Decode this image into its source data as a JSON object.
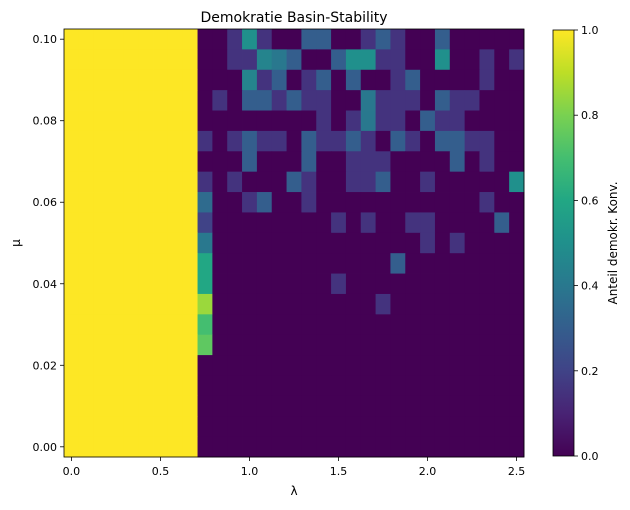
{
  "chart_data": {
    "type": "heatmap",
    "title": "Demokratie Basin-Stability",
    "xlabel": "λ",
    "ylabel": "μ",
    "colorbar_label": "Anteil demokr. Konv.",
    "colormap": "viridis",
    "clim": [
      0,
      1
    ],
    "xlim": [
      -0.0417,
      2.5417
    ],
    "ylim": [
      -0.0025,
      0.1025
    ],
    "x_step": 0.08333,
    "y_step": 0.005,
    "x_ticks": [
      "0.0",
      "0.5",
      "1.0",
      "1.5",
      "2.0",
      "2.5"
    ],
    "x_tick_values": [
      0,
      0.5,
      1.0,
      1.5,
      2.0,
      2.5
    ],
    "y_ticks": [
      "0.00",
      "0.02",
      "0.04",
      "0.06",
      "0.08",
      "0.10"
    ],
    "y_tick_values": [
      0,
      0.02,
      0.04,
      0.06,
      0.08,
      0.1
    ],
    "colorbar_ticks": [
      "0.0",
      "0.2",
      "0.4",
      "0.6",
      "0.8",
      "1.0"
    ],
    "colorbar_tick_values": [
      0,
      0.2,
      0.4,
      0.6,
      0.8,
      1.0
    ],
    "rows_order": "mu descending from 0.100 to 0.000; columns lambda ascending from 0.0 to 2.5",
    "z": [
      [
        1,
        1,
        1,
        1,
        1,
        1,
        1,
        1,
        1,
        0,
        0,
        0.15,
        0.5,
        0.15,
        0,
        0,
        0.3,
        0.3,
        0,
        0,
        0.15,
        0.3,
        0.15,
        0,
        0,
        0.3,
        0,
        0,
        0,
        0,
        0
      ],
      [
        1,
        1,
        1,
        1,
        1,
        1,
        1,
        1,
        1,
        0,
        0,
        0.15,
        0.15,
        0.45,
        0.4,
        0.3,
        0,
        0,
        0.3,
        0.5,
        0.5,
        0.15,
        0.15,
        0,
        0,
        0.5,
        0,
        0,
        0.15,
        0,
        0.15
      ],
      [
        1,
        1,
        1,
        1,
        1,
        1,
        1,
        1,
        1,
        0,
        0,
        0,
        0.45,
        0.15,
        0.3,
        0,
        0.15,
        0.3,
        0,
        0.3,
        0,
        0,
        0.15,
        0.3,
        0,
        0,
        0,
        0,
        0.15,
        0,
        0
      ],
      [
        1,
        1,
        1,
        1,
        1,
        1,
        1,
        1,
        1,
        0,
        0.15,
        0,
        0.3,
        0.3,
        0.15,
        0.3,
        0.15,
        0.15,
        0,
        0,
        0.4,
        0.15,
        0.15,
        0.15,
        0,
        0.3,
        0.15,
        0.15,
        0,
        0,
        0
      ],
      [
        1,
        1,
        1,
        1,
        1,
        1,
        1,
        1,
        1,
        0,
        0,
        0,
        0,
        0,
        0,
        0,
        0,
        0.15,
        0,
        0.15,
        0.4,
        0.15,
        0.15,
        0,
        0.3,
        0.15,
        0.15,
        0,
        0,
        0,
        0
      ],
      [
        1,
        1,
        1,
        1,
        1,
        1,
        1,
        1,
        1,
        0.15,
        0,
        0.15,
        0.3,
        0.15,
        0.15,
        0,
        0.3,
        0.15,
        0.15,
        0.3,
        0.15,
        0,
        0.3,
        0.15,
        0,
        0.3,
        0.3,
        0.15,
        0.15,
        0,
        0
      ],
      [
        1,
        1,
        1,
        1,
        1,
        1,
        1,
        1,
        1,
        0,
        0,
        0,
        0.3,
        0,
        0,
        0,
        0.3,
        0,
        0,
        0.15,
        0.15,
        0.15,
        0,
        0,
        0,
        0,
        0.3,
        0,
        0.15,
        0,
        0
      ],
      [
        1,
        1,
        1,
        1,
        1,
        1,
        1,
        1,
        1,
        0.15,
        0,
        0.15,
        0,
        0,
        0,
        0.3,
        0.15,
        0,
        0,
        0.15,
        0.15,
        0.3,
        0,
        0,
        0.15,
        0,
        0,
        0,
        0,
        0,
        0.5
      ],
      [
        1,
        1,
        1,
        1,
        1,
        1,
        1,
        1,
        1,
        0.35,
        0,
        0,
        0.15,
        0.3,
        0,
        0,
        0.15,
        0,
        0,
        0,
        0,
        0,
        0,
        0,
        0,
        0,
        0,
        0,
        0.15,
        0,
        0
      ],
      [
        1,
        1,
        1,
        1,
        1,
        1,
        1,
        1,
        1,
        0.2,
        0,
        0,
        0,
        0,
        0,
        0,
        0,
        0,
        0.15,
        0,
        0.15,
        0,
        0,
        0.15,
        0.15,
        0,
        0,
        0,
        0,
        0.3,
        0
      ],
      [
        1,
        1,
        1,
        1,
        1,
        1,
        1,
        1,
        1,
        0.4,
        0,
        0,
        0,
        0,
        0,
        0,
        0,
        0,
        0,
        0,
        0,
        0,
        0,
        0,
        0.15,
        0,
        0.15,
        0,
        0,
        0,
        0
      ],
      [
        1,
        1,
        1,
        1,
        1,
        1,
        1,
        1,
        1,
        0.6,
        0,
        0,
        0,
        0,
        0,
        0,
        0,
        0,
        0,
        0,
        0,
        0,
        0.3,
        0,
        0,
        0,
        0,
        0,
        0,
        0,
        0
      ],
      [
        1,
        1,
        1,
        1,
        1,
        1,
        1,
        1,
        1,
        0.6,
        0,
        0,
        0,
        0,
        0,
        0,
        0,
        0,
        0.15,
        0,
        0,
        0,
        0,
        0,
        0,
        0,
        0,
        0,
        0,
        0,
        0
      ],
      [
        1,
        1,
        1,
        1,
        1,
        1,
        1,
        1,
        1,
        0.85,
        0,
        0,
        0,
        0,
        0,
        0,
        0,
        0,
        0,
        0,
        0,
        0.15,
        0,
        0,
        0,
        0,
        0,
        0,
        0,
        0,
        0
      ],
      [
        1,
        1,
        1,
        1,
        1,
        1,
        1,
        1,
        1,
        0.7,
        0,
        0,
        0,
        0,
        0,
        0,
        0,
        0,
        0,
        0,
        0,
        0,
        0,
        0,
        0,
        0,
        0,
        0,
        0,
        0,
        0
      ],
      [
        1,
        1,
        1,
        1,
        1,
        1,
        1,
        1,
        1,
        0.75,
        0,
        0,
        0,
        0,
        0,
        0,
        0,
        0,
        0,
        0,
        0,
        0,
        0,
        0,
        0,
        0,
        0,
        0,
        0,
        0,
        0
      ],
      [
        1,
        1,
        1,
        1,
        1,
        1,
        1,
        1,
        1,
        0,
        0,
        0,
        0,
        0,
        0,
        0,
        0,
        0,
        0,
        0,
        0,
        0,
        0,
        0,
        0,
        0,
        0,
        0,
        0,
        0,
        0
      ],
      [
        1,
        1,
        1,
        1,
        1,
        1,
        1,
        1,
        1,
        0,
        0,
        0,
        0,
        0,
        0,
        0,
        0,
        0,
        0,
        0,
        0,
        0,
        0,
        0,
        0,
        0,
        0,
        0,
        0,
        0,
        0
      ],
      [
        1,
        1,
        1,
        1,
        1,
        1,
        1,
        1,
        1,
        0,
        0,
        0,
        0,
        0,
        0,
        0,
        0,
        0,
        0,
        0,
        0,
        0,
        0,
        0,
        0,
        0,
        0,
        0,
        0,
        0,
        0
      ],
      [
        1,
        1,
        1,
        1,
        1,
        1,
        1,
        1,
        1,
        0,
        0,
        0,
        0,
        0,
        0,
        0,
        0,
        0,
        0,
        0,
        0,
        0,
        0,
        0,
        0,
        0,
        0,
        0,
        0,
        0,
        0
      ],
      [
        1,
        1,
        1,
        1,
        1,
        1,
        1,
        1,
        1,
        0,
        0,
        0,
        0,
        0,
        0,
        0,
        0,
        0,
        0,
        0,
        0,
        0,
        0,
        0,
        0,
        0,
        0,
        0,
        0,
        0,
        0
      ]
    ]
  }
}
